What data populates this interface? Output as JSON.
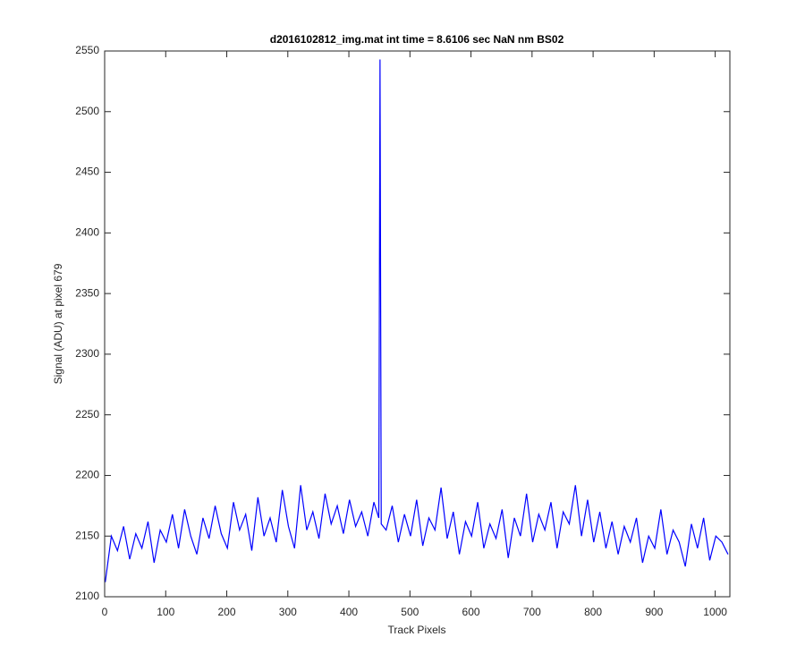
{
  "chart_data": {
    "type": "line",
    "title": "d2016102812_img.mat int time = 8.6106 sec  NaN nm BS02",
    "x_label": "Track Pixels",
    "y_label": "Signal (ADU) at pixel 679",
    "xlim": [
      0,
      1024
    ],
    "ylim": [
      2100,
      2550
    ],
    "xticks": [
      0,
      100,
      200,
      300,
      400,
      500,
      600,
      700,
      800,
      900,
      1000
    ],
    "yticks": [
      2100,
      2150,
      2200,
      2250,
      2300,
      2350,
      2400,
      2450,
      2500,
      2550
    ],
    "grid": false,
    "x": [
      1,
      11,
      21,
      31,
      41,
      51,
      61,
      71,
      81,
      91,
      101,
      111,
      121,
      131,
      141,
      151,
      161,
      171,
      181,
      191,
      201,
      211,
      221,
      231,
      241,
      251,
      261,
      271,
      281,
      291,
      301,
      311,
      321,
      331,
      341,
      351,
      361,
      371,
      381,
      391,
      401,
      411,
      421,
      431,
      441,
      449,
      451,
      453,
      461,
      471,
      481,
      491,
      501,
      511,
      521,
      531,
      541,
      551,
      561,
      571,
      581,
      591,
      601,
      611,
      621,
      631,
      641,
      651,
      661,
      671,
      681,
      691,
      701,
      711,
      721,
      731,
      741,
      751,
      761,
      771,
      781,
      791,
      801,
      811,
      821,
      831,
      841,
      851,
      861,
      871,
      881,
      891,
      901,
      911,
      921,
      931,
      941,
      951,
      961,
      971,
      981,
      991,
      1001,
      1011,
      1021
    ],
    "series": [
      {
        "name": "signal",
        "color": "#0000ff",
        "values": [
          2112,
          2150,
          2138,
          2158,
          2131,
          2152,
          2140,
          2162,
          2128,
          2155,
          2145,
          2168,
          2140,
          2172,
          2150,
          2135,
          2165,
          2148,
          2175,
          2152,
          2140,
          2178,
          2155,
          2168,
          2138,
          2182,
          2150,
          2165,
          2145,
          2188,
          2158,
          2140,
          2192,
          2155,
          2170,
          2148,
          2185,
          2160,
          2175,
          2152,
          2180,
          2158,
          2170,
          2150,
          2178,
          2165,
          2543,
          2160,
          2155,
          2175,
          2145,
          2168,
          2150,
          2180,
          2142,
          2165,
          2155,
          2190,
          2148,
          2170,
          2135,
          2162,
          2150,
          2178,
          2140,
          2160,
          2148,
          2172,
          2132,
          2165,
          2150,
          2185,
          2145,
          2168,
          2155,
          2178,
          2140,
          2170,
          2160,
          2192,
          2150,
          2180,
          2145,
          2170,
          2140,
          2162,
          2135,
          2158,
          2145,
          2165,
          2128,
          2150,
          2140,
          2172,
          2135,
          2155,
          2145,
          2125,
          2160,
          2140,
          2165,
          2130,
          2150,
          2145,
          2135
        ]
      }
    ]
  }
}
